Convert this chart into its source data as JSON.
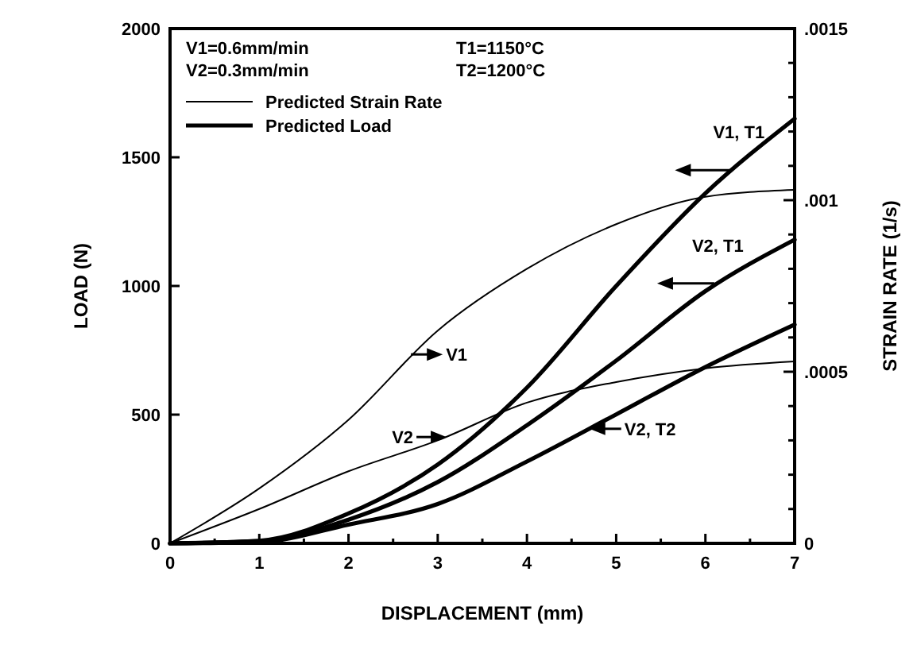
{
  "chart_data": {
    "type": "line",
    "xlabel": "DISPLACEMENT (mm)",
    "ylabel": "LOAD (N)",
    "y2label": "STRAIN RATE (1/s)",
    "x": [
      0,
      1,
      2,
      3,
      4,
      5,
      6,
      7
    ],
    "series": [
      {
        "name": "Predicted Strain Rate",
        "color": "#000000",
        "axis": "y2",
        "values": [
          0,
          0.00016,
          0.00036,
          0.00062,
          0.0008,
          0.00093,
          0.00101,
          0.00103
        ]
      },
      {
        "color": "#000000",
        "axis": "y2",
        "values": [
          0,
          0.0001,
          0.00021,
          0.0003,
          0.00041,
          0.00047,
          0.00051,
          0.00053
        ]
      },
      {
        "name": "Predicted Load",
        "color": "#000000",
        "values": [
          0,
          10,
          116,
          306,
          605,
          1000,
          1360,
          1650
        ]
      },
      {
        "color": "#000000",
        "values": [
          0,
          8,
          92,
          238,
          459,
          710,
          980,
          1180
        ]
      },
      {
        "color": "#000000",
        "values": [
          0,
          5,
          73,
          153,
          318,
          501,
          685,
          850
        ]
      }
    ],
    "xlim": [
      0,
      7
    ],
    "xticks": [
      0,
      {
        "value": 0.5,
        "label": null
      },
      1,
      {
        "value": 1.5,
        "label": null
      },
      2,
      {
        "value": 2.5,
        "label": null
      },
      3,
      {
        "value": 3.5,
        "label": null
      },
      4,
      {
        "value": 4.5,
        "label": null
      },
      5,
      {
        "value": 5.5,
        "label": null
      },
      6,
      {
        "value": 6.5,
        "label": null
      },
      7
    ],
    "ylim": [
      0,
      2000
    ],
    "yticks": [
      0,
      500,
      1000,
      1500,
      2000
    ],
    "y2lim": [
      0,
      0.0015
    ],
    "y2ticks": [
      {
        "value": 0,
        "label": "0"
      },
      {
        "value": 0.0001,
        "label": null
      },
      {
        "value": 0.0002,
        "label": null
      },
      {
        "value": 0.0003,
        "label": null
      },
      {
        "value": 0.0004,
        "label": null
      },
      {
        "value": 0.0005,
        "label": ".0005"
      },
      {
        "value": 0.0006,
        "label": null
      },
      {
        "value": 0.0007,
        "label": null
      },
      {
        "value": 0.0008,
        "label": null
      },
      {
        "value": 0.0009,
        "label": null
      },
      {
        "value": 0.001,
        "label": ".001"
      },
      {
        "value": 0.0011,
        "label": null
      },
      {
        "value": 0.0012,
        "label": null
      },
      {
        "value": 0.0013,
        "label": null
      },
      {
        "value": 0.0014,
        "label": null
      },
      {
        "value": 0.0015,
        "label": ".0015"
      }
    ],
    "legend": "top left",
    "grid": false,
    "marker": "none",
    "line_style": "solid",
    "annotations": [
      "V1=0.6mm/min",
      "V2=0.3mm/min",
      "T1=1150°C",
      "T2=1200°C",
      {
        "text": "V1, T1",
        "x": 6.3,
        "y": 1450
      },
      {
        "text": "V2, T1",
        "x": 6.1,
        "y": 1010
      },
      {
        "text": "V2, T2",
        "x": 4.7,
        "y": 445
      },
      {
        "text": "V1",
        "x": 2.7,
        "y": 734
      },
      {
        "text": "V2",
        "x": 3.1,
        "y": 413
      }
    ]
  }
}
